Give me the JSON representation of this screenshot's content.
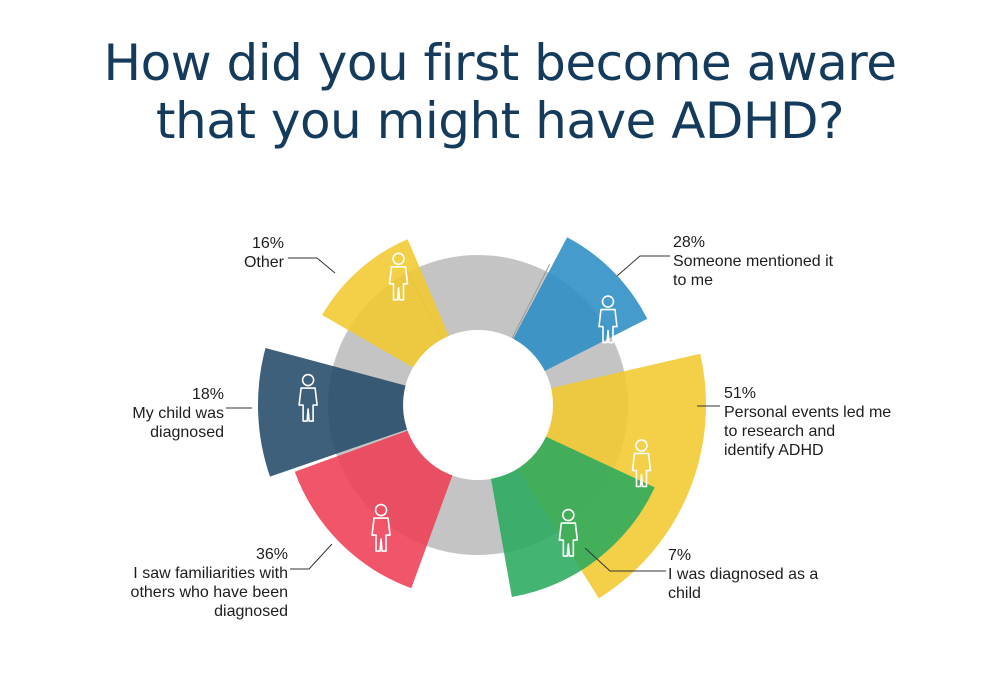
{
  "title": {
    "line1": "How did you first become aware",
    "line2": "that you might have ADHD?"
  },
  "chart_data": {
    "type": "pie",
    "variant": "radial-sector (nightingale) around a grey donut, each sector marked with a person icon",
    "title": "How did you first become aware that you might have ADHD?",
    "slices": [
      {
        "category": "Someone mentioned it to me",
        "value": 28,
        "value_label": "28%",
        "color": "#2a8dc5",
        "icon": "person-icon"
      },
      {
        "category": "Personal events led me to research and identify ADHD",
        "value": 51,
        "value_label": "51%",
        "color": "#f1c92e",
        "icon": "person-icon"
      },
      {
        "category": "I was diagnosed as a child",
        "value": 7,
        "value_label": "7%",
        "color": "#2aaa5e",
        "icon": "person-icon"
      },
      {
        "category": "I saw familiarities with others who have been diagnosed",
        "value": 36,
        "value_label": "36%",
        "color": "#ee3d55",
        "icon": "person-icon"
      },
      {
        "category": "My child was diagnosed",
        "value": 18,
        "value_label": "18%",
        "color": "#234a68",
        "icon": "person-icon"
      },
      {
        "category": "Other",
        "value": 16,
        "value_label": "16%",
        "color": "#f1c92e",
        "icon": "person-icon"
      }
    ],
    "unit": "%",
    "donut_ring_color": "#c4c4c4"
  },
  "labels": {
    "someone": {
      "pct": "28%",
      "lines": [
        "Someone mentioned it",
        "to me"
      ]
    },
    "personal": {
      "pct": "51%",
      "lines": [
        "Personal events led me",
        "to research and",
        "identify ADHD"
      ]
    },
    "child": {
      "pct": "7%",
      "lines": [
        "I was diagnosed as a",
        "child"
      ]
    },
    "familiar": {
      "pct": "36%",
      "lines": [
        "I saw familiarities with",
        "others who have been",
        "diagnosed"
      ]
    },
    "mychild": {
      "pct": "18%",
      "lines": [
        "My child was",
        "diagnosed"
      ]
    },
    "other": {
      "pct": "16%",
      "lines": [
        "Other"
      ]
    }
  }
}
